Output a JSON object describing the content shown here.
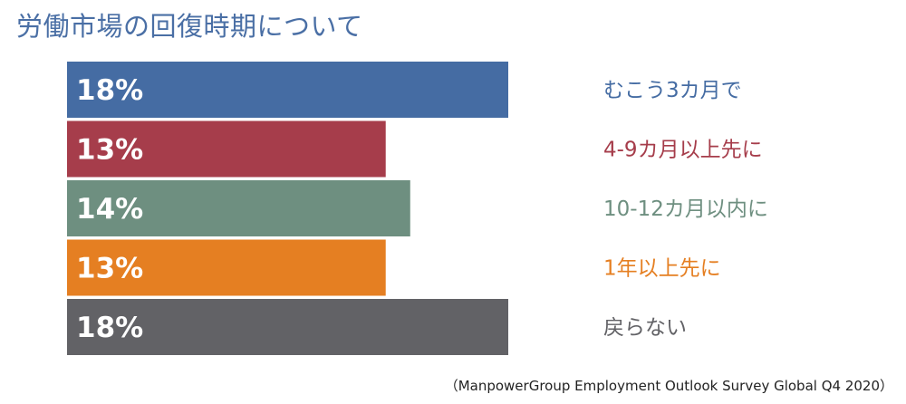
{
  "title": "労働市場の回復時期について",
  "source": "（ManpowerGroup Employment Outlook Survey Global Q4 2020）",
  "chart_data": {
    "type": "bar",
    "orientation": "horizontal",
    "title": "労働市場の回復時期について",
    "xlabel": "",
    "ylabel": "",
    "xlim": [
      0,
      18
    ],
    "grid": false,
    "legend": "none",
    "categories": [
      "むこう3カ月で",
      "4-9カ月以上先に",
      "10-12カ月以内に",
      "1年以上先に",
      "戻らない"
    ],
    "values": [
      18,
      13,
      14,
      13,
      18
    ],
    "value_labels": [
      "18%",
      "13%",
      "14%",
      "13%",
      "18%"
    ],
    "colors": [
      "#456ca3",
      "#a63d4b",
      "#6e8f80",
      "#e57f22",
      "#626266"
    ]
  }
}
